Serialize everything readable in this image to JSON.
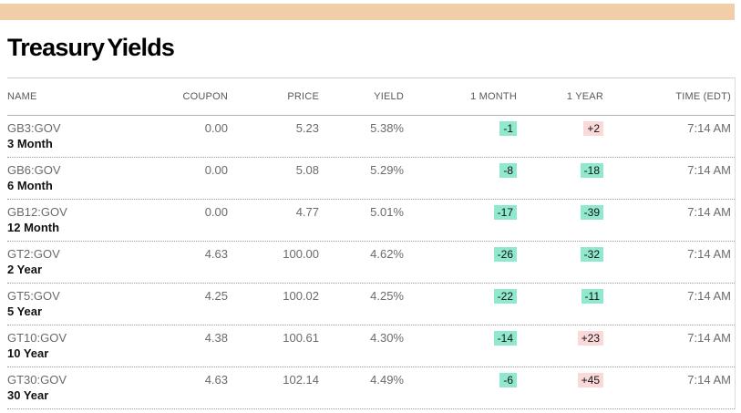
{
  "page": {
    "title": "Treasury Yields"
  },
  "colors": {
    "band_dot": "#e2923c",
    "negative_badge": "#90e9ce",
    "positive_badge": "#fad9da",
    "header_text": "#58595b",
    "value_text": "#6b6b6b"
  },
  "table": {
    "columns": [
      {
        "key": "name",
        "label": "NAME",
        "align": "left"
      },
      {
        "key": "coupon",
        "label": "COUPON",
        "align": "right"
      },
      {
        "key": "price",
        "label": "PRICE",
        "align": "right"
      },
      {
        "key": "yield",
        "label": "YIELD",
        "align": "right"
      },
      {
        "key": "one-month",
        "label": "1 MONTH",
        "align": "right"
      },
      {
        "key": "one-year",
        "label": "1 YEAR",
        "align": "right"
      },
      {
        "key": "time",
        "label": "TIME (EDT)",
        "align": "right"
      }
    ],
    "rows": [
      {
        "ticker": "GB3:GOV",
        "maturity": "3 Month",
        "coupon": "0.00",
        "price": "5.23",
        "yield": "5.38%",
        "one_month": {
          "value": "-1",
          "tone": "negative"
        },
        "one_year": {
          "value": "+2",
          "tone": "positive"
        },
        "time": "7:14 AM"
      },
      {
        "ticker": "GB6:GOV",
        "maturity": "6 Month",
        "coupon": "0.00",
        "price": "5.08",
        "yield": "5.29%",
        "one_month": {
          "value": "-8",
          "tone": "negative"
        },
        "one_year": {
          "value": "-18",
          "tone": "negative"
        },
        "time": "7:14 AM"
      },
      {
        "ticker": "GB12:GOV",
        "maturity": "12 Month",
        "coupon": "0.00",
        "price": "4.77",
        "yield": "5.01%",
        "one_month": {
          "value": "-17",
          "tone": "negative"
        },
        "one_year": {
          "value": "-39",
          "tone": "negative"
        },
        "time": "7:14 AM"
      },
      {
        "ticker": "GT2:GOV",
        "maturity": "2 Year",
        "coupon": "4.63",
        "price": "100.00",
        "yield": "4.62%",
        "one_month": {
          "value": "-26",
          "tone": "negative"
        },
        "one_year": {
          "value": "-32",
          "tone": "negative"
        },
        "time": "7:14 AM"
      },
      {
        "ticker": "GT5:GOV",
        "maturity": "5 Year",
        "coupon": "4.25",
        "price": "100.02",
        "yield": "4.25%",
        "one_month": {
          "value": "-22",
          "tone": "negative"
        },
        "one_year": {
          "value": "-11",
          "tone": "negative"
        },
        "time": "7:14 AM"
      },
      {
        "ticker": "GT10:GOV",
        "maturity": "10 Year",
        "coupon": "4.38",
        "price": "100.61",
        "yield": "4.30%",
        "one_month": {
          "value": "-14",
          "tone": "negative"
        },
        "one_year": {
          "value": "+23",
          "tone": "positive"
        },
        "time": "7:14 AM"
      },
      {
        "ticker": "GT30:GOV",
        "maturity": "30 Year",
        "coupon": "4.63",
        "price": "102.14",
        "yield": "4.49%",
        "one_month": {
          "value": "-6",
          "tone": "negative"
        },
        "one_year": {
          "value": "+45",
          "tone": "positive"
        },
        "time": "7:14 AM"
      }
    ]
  }
}
